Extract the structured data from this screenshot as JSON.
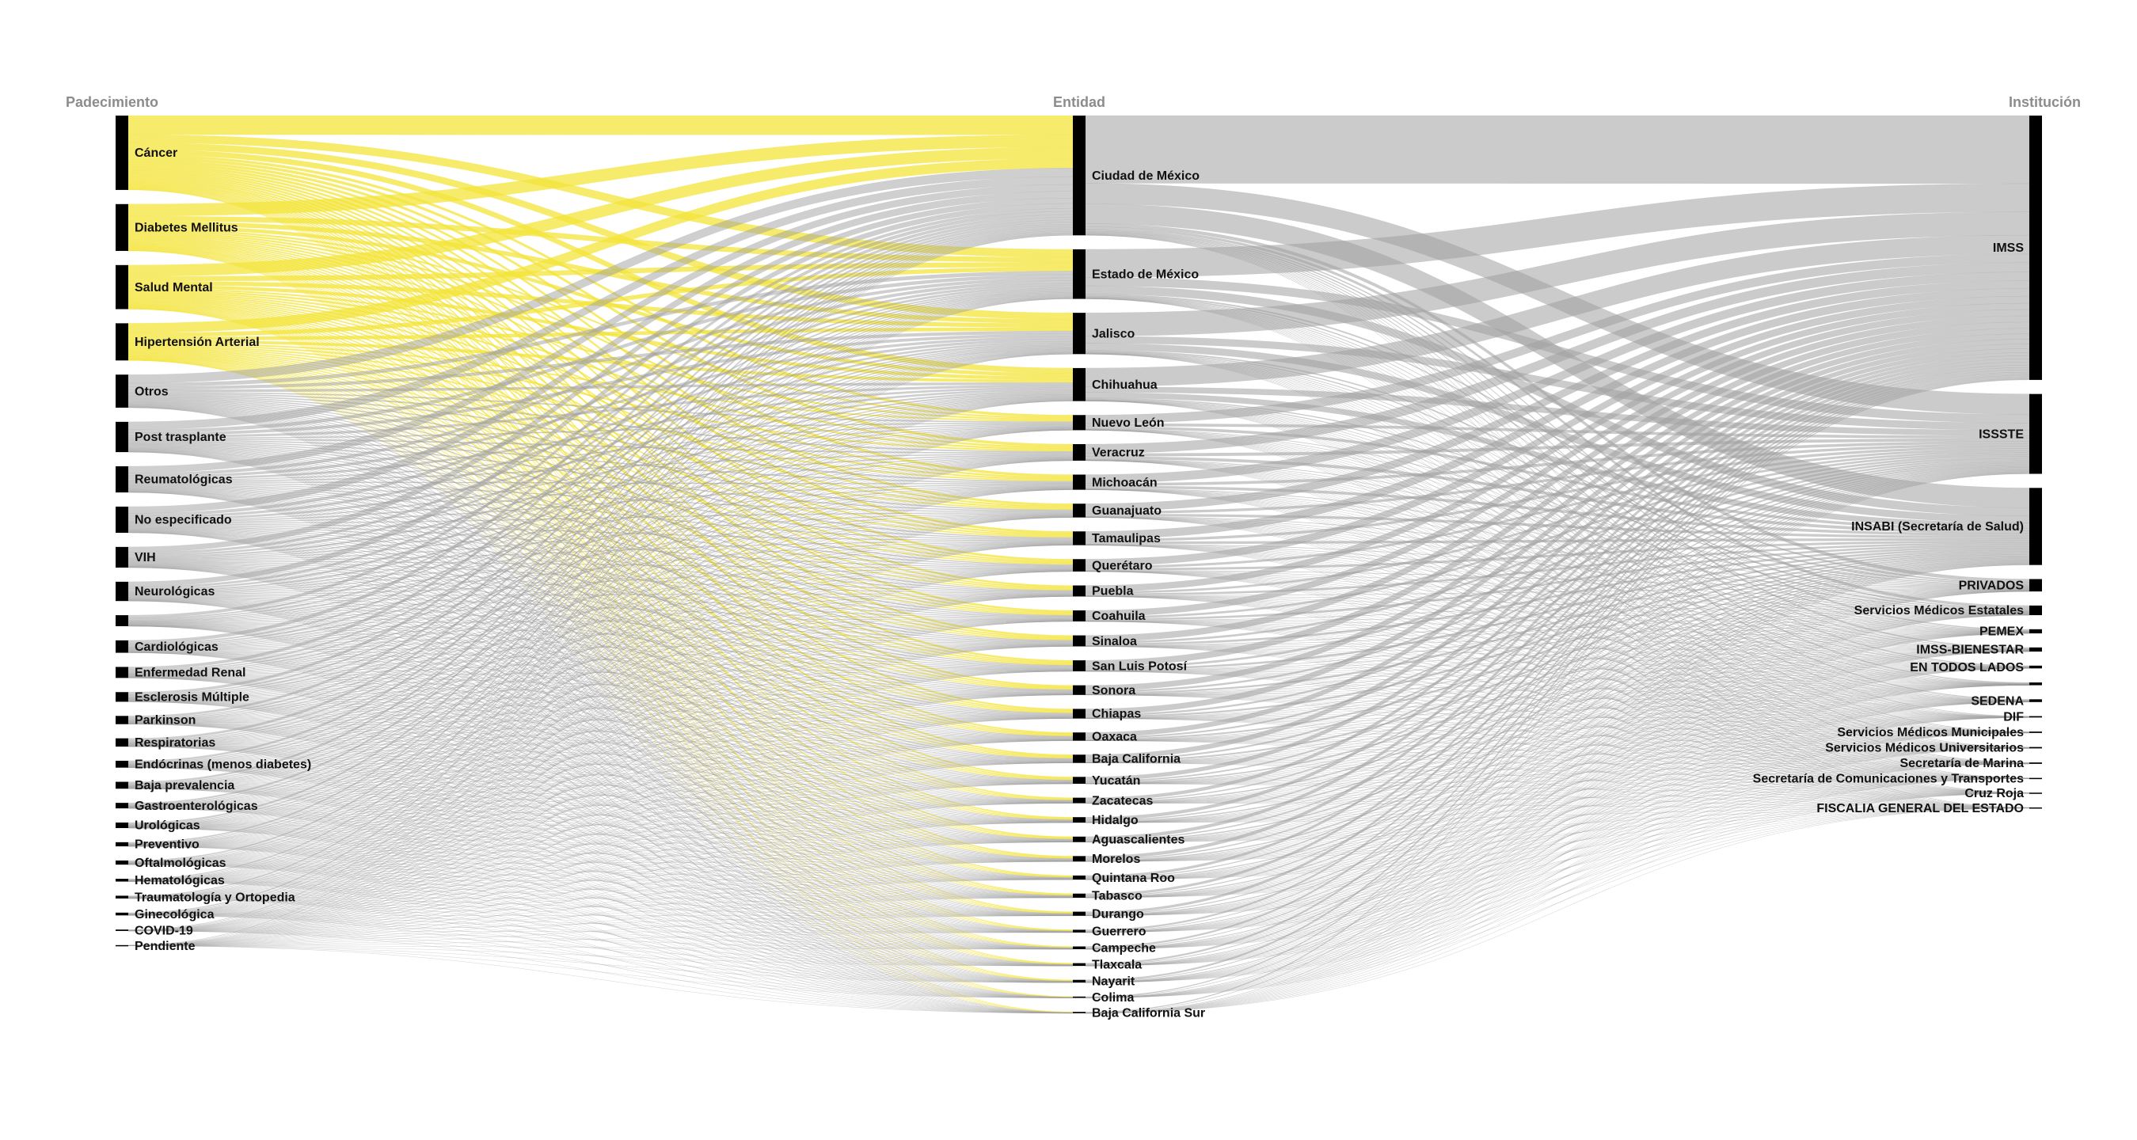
{
  "columns": [
    {
      "title": "Padecimiento",
      "nodes": [
        {
          "label": "Cáncer",
          "value": 54,
          "highlight": true
        },
        {
          "label": "Diabetes Mellitus",
          "value": 34,
          "highlight": true
        },
        {
          "label": "Salud Mental",
          "value": 32,
          "highlight": true
        },
        {
          "label": "Hipertensión Arterial",
          "value": 27,
          "highlight": true
        },
        {
          "label": "Otros",
          "value": 24
        },
        {
          "label": "Post trasplante",
          "value": 22
        },
        {
          "label": "Reumatológicas",
          "value": 19
        },
        {
          "label": "No especificado",
          "value": 19
        },
        {
          "label": "VIH",
          "value": 15
        },
        {
          "label": "Neurológicas",
          "value": 14
        },
        {
          "label": null,
          "value": 8
        },
        {
          "label": "Cardiológicas",
          "value": 9
        },
        {
          "label": "Enfermedad Renal",
          "value": 8
        },
        {
          "label": "Esclerosis Múltiple",
          "value": 7
        },
        {
          "label": "Parkinson",
          "value": 6
        },
        {
          "label": "Respiratorias",
          "value": 6
        },
        {
          "label": "Endócrinas (menos diabetes)",
          "value": 5
        },
        {
          "label": "Baja prevalencia",
          "value": 5
        },
        {
          "label": "Gastroenterológicas",
          "value": 4
        },
        {
          "label": "Urológicas",
          "value": 4
        },
        {
          "label": "Preventivo",
          "value": 3
        },
        {
          "label": "Oftalmológicas",
          "value": 3
        },
        {
          "label": "Hematológicas",
          "value": 2
        },
        {
          "label": "Traumatología y Ortopedia",
          "value": 2
        },
        {
          "label": "Ginecológica",
          "value": 2
        },
        {
          "label": "COVID-19",
          "value": 1
        },
        {
          "label": "Pendiente",
          "value": 0.5
        }
      ]
    },
    {
      "title": "Entidad",
      "nodes": [
        {
          "label": "Ciudad de México",
          "value": 87
        },
        {
          "label": "Estado de México",
          "value": 36
        },
        {
          "label": "Jalisco",
          "value": 30
        },
        {
          "label": "Chihuahua",
          "value": 24
        },
        {
          "label": "Nuevo León",
          "value": 11
        },
        {
          "label": "Veracruz",
          "value": 12
        },
        {
          "label": "Michoacán",
          "value": 11
        },
        {
          "label": "Guanajuato",
          "value": 10
        },
        {
          "label": "Tamaulipas",
          "value": 10
        },
        {
          "label": "Querétaro",
          "value": 9
        },
        {
          "label": "Puebla",
          "value": 8
        },
        {
          "label": "Coahuila",
          "value": 8
        },
        {
          "label": "Sinaloa",
          "value": 8
        },
        {
          "label": "San Luis Potosí",
          "value": 8
        },
        {
          "label": "Sonora",
          "value": 7
        },
        {
          "label": "Chiapas",
          "value": 7
        },
        {
          "label": "Oaxaca",
          "value": 6
        },
        {
          "label": "Baja California",
          "value": 6
        },
        {
          "label": "Yucatán",
          "value": 5
        },
        {
          "label": "Zacatecas",
          "value": 4
        },
        {
          "label": "Hidalgo",
          "value": 4
        },
        {
          "label": "Aguascalientes",
          "value": 4
        },
        {
          "label": "Morelos",
          "value": 4
        },
        {
          "label": "Quintana Roo",
          "value": 3
        },
        {
          "label": "Tabasco",
          "value": 3
        },
        {
          "label": "Durango",
          "value": 3
        },
        {
          "label": "Guerrero",
          "value": 2
        },
        {
          "label": "Campeche",
          "value": 2
        },
        {
          "label": "Tlaxcala",
          "value": 2
        },
        {
          "label": "Nayarit",
          "value": 2
        },
        {
          "label": "Colima",
          "value": 1
        },
        {
          "label": "Baja California Sur",
          "value": 1
        }
      ]
    },
    {
      "title": "Institución",
      "nodes": [
        {
          "label": "IMSS",
          "value": 192
        },
        {
          "label": "ISSSTE",
          "value": 58
        },
        {
          "label": "INSABI (Secretaría de Salud)",
          "value": 56
        },
        {
          "label": "PRIVADOS",
          "value": 9
        },
        {
          "label": "Servicios Médicos Estatales",
          "value": 7
        },
        {
          "label": "PEMEX",
          "value": 3
        },
        {
          "label": "IMSS-BIENESTAR",
          "value": 3
        },
        {
          "label": "EN TODOS LADOS",
          "value": 2
        },
        {
          "label": null,
          "value": 2
        },
        {
          "label": "SEDENA",
          "value": 2
        },
        {
          "label": "DIF",
          "value": 1
        },
        {
          "label": "Servicios Médicos Municipales",
          "value": 1
        },
        {
          "label": "Servicios Médicos Universitarios",
          "value": 1
        },
        {
          "label": "Secretaría de Marina",
          "value": 1
        },
        {
          "label": "Secretaría de Comunicaciones y Transportes",
          "value": 0.5
        },
        {
          "label": "Cruz Roja",
          "value": 0.5
        },
        {
          "label": "FISCALIA GENERAL DEL ESTADO",
          "value": 0.5
        }
      ]
    }
  ],
  "highlight_color": "#f3e43a",
  "flow_color": "#a0a0a0",
  "node_color": "#000000"
}
